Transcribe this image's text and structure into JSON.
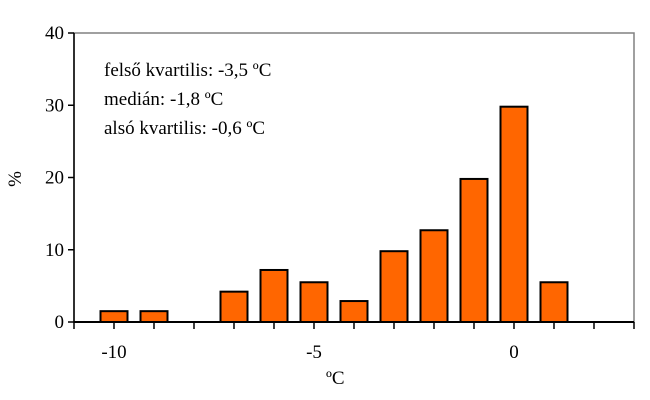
{
  "chart_data": {
    "type": "bar",
    "x": [
      -10,
      -9,
      -7,
      -6,
      -5,
      -4,
      -3,
      -2,
      -1,
      0,
      1
    ],
    "values": [
      1.5,
      1.5,
      4.2,
      7.2,
      5.5,
      2.9,
      9.8,
      12.7,
      19.8,
      29.8,
      5.5
    ],
    "xlabel": "ºC",
    "ylabel": "%",
    "xlim": [
      -11,
      3
    ],
    "ylim": [
      0,
      40
    ],
    "xticks": [
      -10,
      -5,
      0
    ],
    "yticks": [
      0,
      10,
      20,
      30,
      40
    ],
    "grid": false,
    "bar_color": "#ff6600",
    "annotations": [
      "felső kvartilis: -3,5 ºC",
      "medián: -1,8 ºC",
      "alsó kvartilis: -0,6 ºC"
    ]
  }
}
